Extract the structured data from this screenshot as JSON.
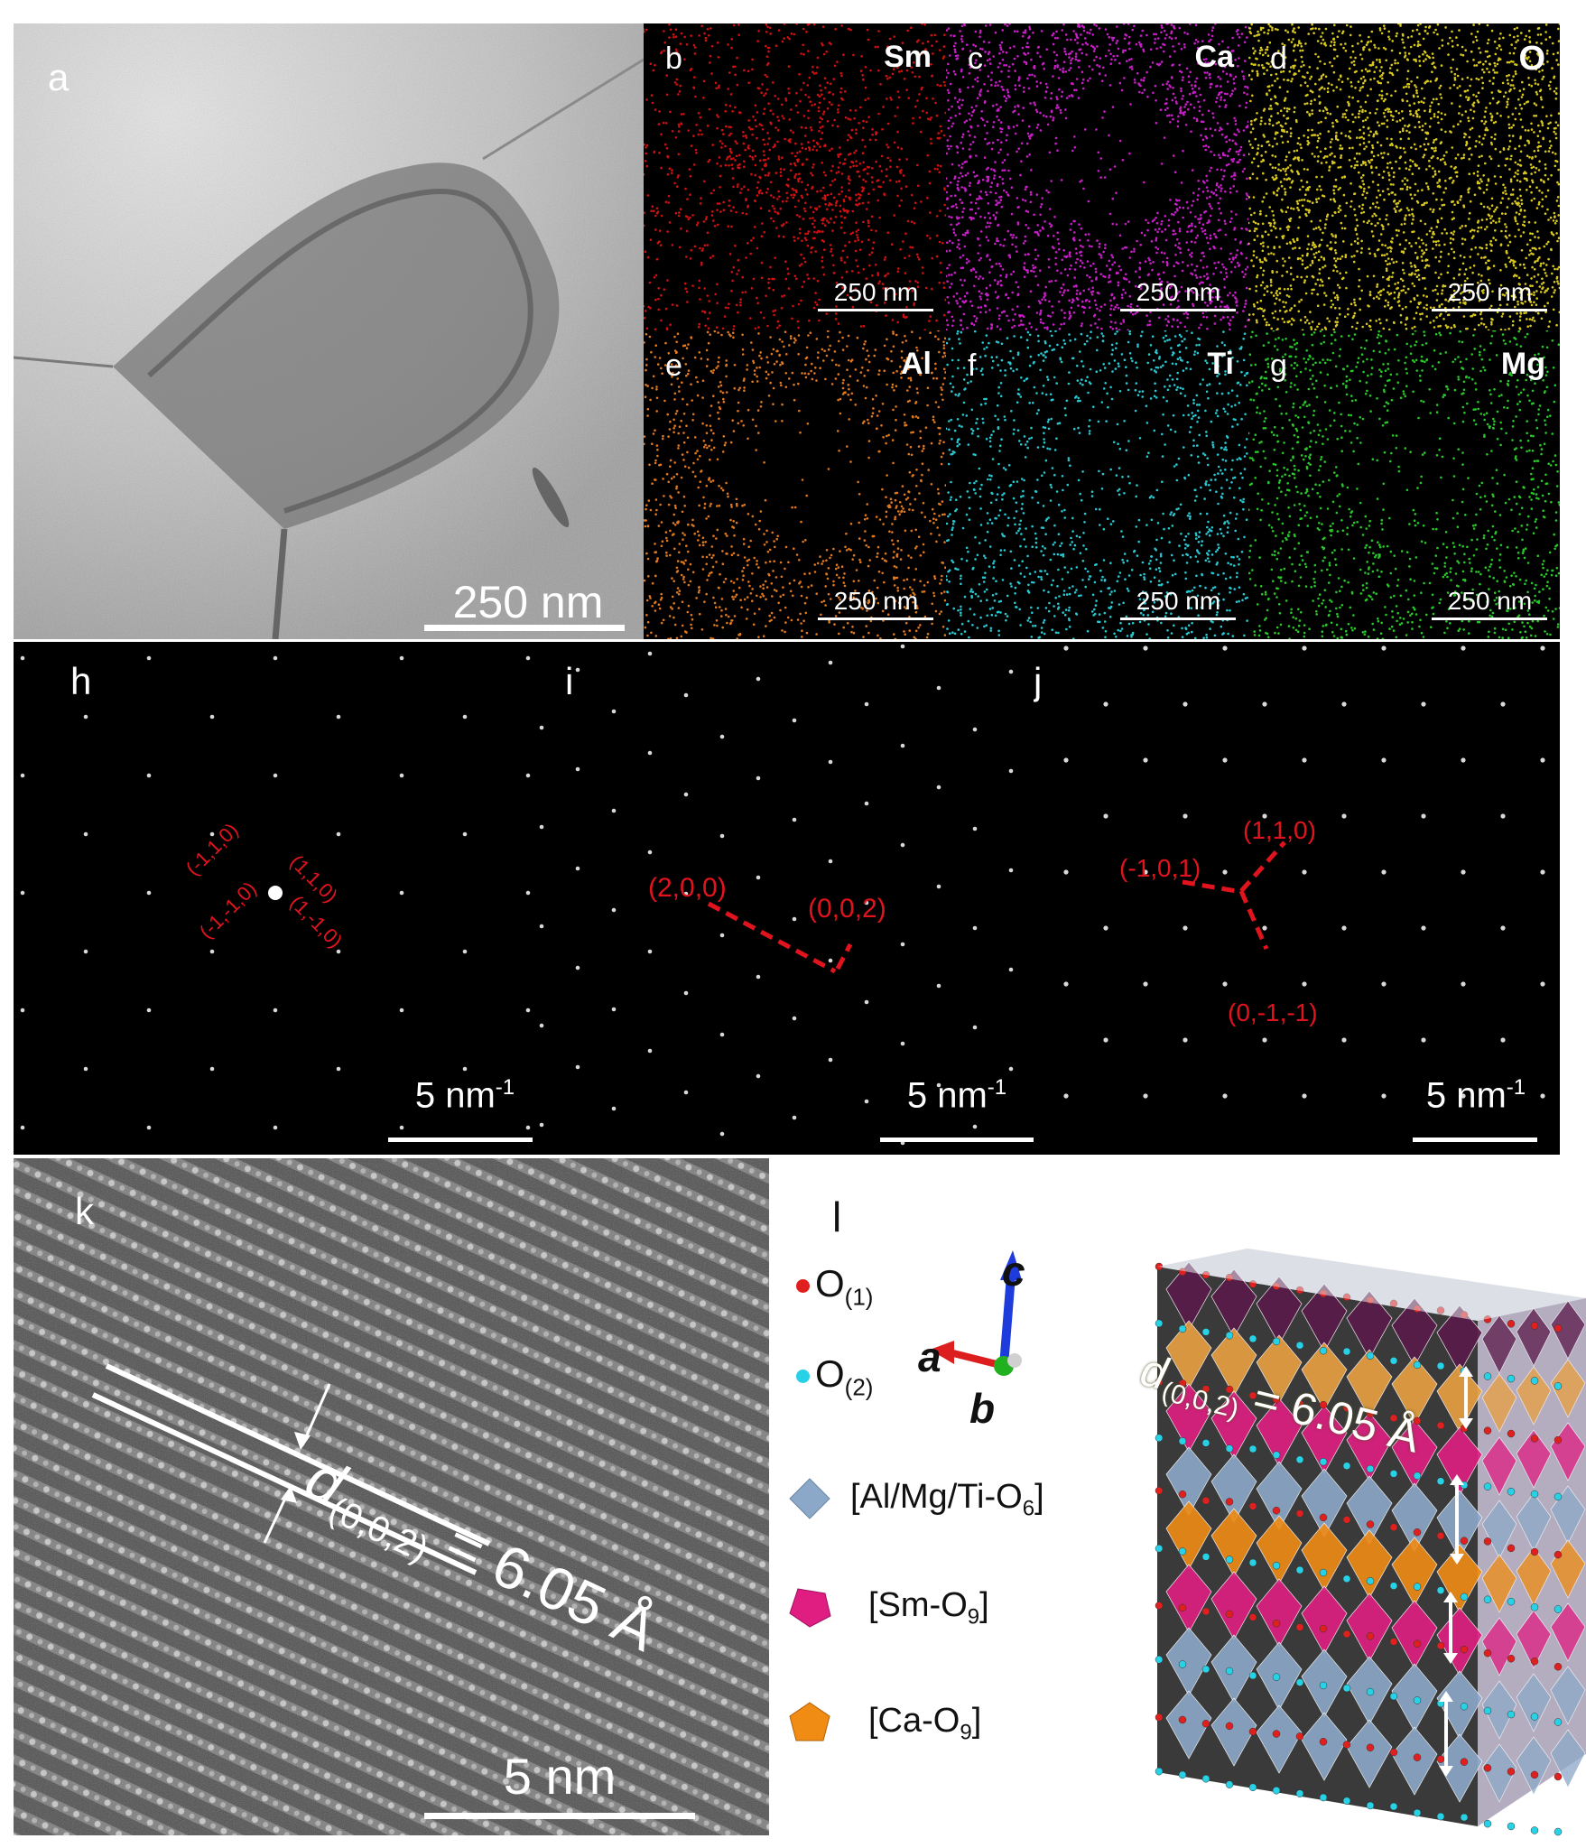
{
  "figure": {
    "panel_a": {
      "label": "a",
      "scale": "250 nm"
    },
    "eds_maps": [
      {
        "label": "b",
        "element": "Sm",
        "scale": "250 nm",
        "color": "#d01010"
      },
      {
        "label": "c",
        "element": "Ca",
        "scale": "250 nm",
        "color": "#c81ec8"
      },
      {
        "label": "d",
        "element": "O",
        "scale": "250 nm",
        "color": "#d8c81e"
      },
      {
        "label": "e",
        "element": "Al",
        "scale": "250 nm",
        "color": "#e0781e"
      },
      {
        "label": "f",
        "element": "Ti",
        "scale": "250 nm",
        "color": "#28c8d2"
      },
      {
        "label": "g",
        "element": "Mg",
        "scale": "250 nm",
        "color": "#28c828"
      }
    ],
    "diffraction": [
      {
        "label": "h",
        "scale": "5 nm",
        "scale_exp": "-1",
        "indices": [
          "(-1,1,0)",
          "(1,1,0)",
          "(-1,-1,0)",
          "(1,-1,0)"
        ]
      },
      {
        "label": "i",
        "scale": "5 nm",
        "scale_exp": "-1",
        "indices": [
          "(2,0,0)",
          "(0,0,2)"
        ]
      },
      {
        "label": "j",
        "scale": "5 nm",
        "scale_exp": "-1",
        "indices": [
          "(1,1,0)",
          "(-1,0,1)",
          "(0,-1,-1)"
        ]
      }
    ],
    "panel_k": {
      "label": "k",
      "d_sym": "d",
      "d_sub": "(0,0,2)",
      "d_value": "= 6.05 Å",
      "scale": "5 nm"
    },
    "panel_l": {
      "label": "l",
      "legend": [
        {
          "name": "O",
          "sub": "(1)",
          "color": "#e0201e"
        },
        {
          "name": "O",
          "sub": "(2)",
          "color": "#28d2e6"
        }
      ],
      "axes": {
        "a": "a",
        "b": "b",
        "c": "c"
      },
      "polyhedra": [
        {
          "pre": "[Al/Mg/Ti-O",
          "sub": "6",
          "post": "]",
          "color": "#8ca8c8"
        },
        {
          "pre": "[Sm-O",
          "sub": "9",
          "post": "]",
          "color": "#e01e82"
        },
        {
          "pre": "[Ca-O",
          "sub": "9",
          "post": "]",
          "color": "#f08c14"
        }
      ],
      "d_sym": "d",
      "d_sub": "(0,0,2)",
      "d_value": "= 6.05 Å"
    }
  }
}
